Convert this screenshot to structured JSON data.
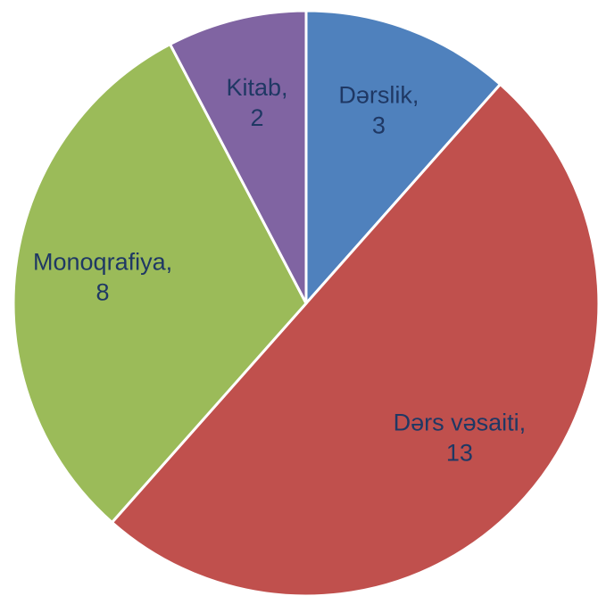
{
  "chart_data": {
    "type": "pie",
    "categories": [
      "Dərslik,",
      "Dərs vəsaiti,",
      "Monoqrafiya,",
      "Kitab,"
    ],
    "values": [
      3,
      13,
      8,
      2
    ],
    "colors": [
      "#4f81bd",
      "#c0504d",
      "#9bbb59",
      "#8064a2"
    ]
  }
}
